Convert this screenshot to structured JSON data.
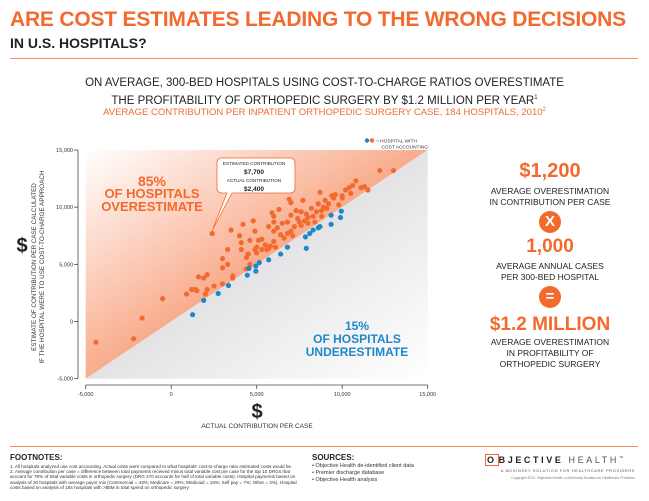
{
  "header": {
    "title": "ARE COST ESTIMATES LEADING TO THE WRONG DECISIONS",
    "subtitle": "IN U.S. HOSPITALS?",
    "headline_line1": "ON AVERAGE, 300-BED HOSPITALS USING COST-TO-CHARGE RATIOS OVERESTIMATE",
    "headline_line2": "THE PROFITABILITY OF ORTHOPEDIC SURGERY BY $1.2 MILLION PER YEAR",
    "headline_footnote": "1",
    "chart_subtitle": "AVERAGE CONTRIBUTION PER INPATIENT ORTHOPEDIC SURGERY CASE, 184 HOSPITALS, 2010",
    "chart_subtitle_footnote": "2"
  },
  "colors": {
    "accent": "#f26a2e",
    "blue": "#1f87c9",
    "gray_region": "#e3e3e5"
  },
  "chart_data": {
    "type": "scatter",
    "xlabel": "ACTUAL CONTRIBUTION PER CASE",
    "xlabel_symbol": "$",
    "ylabel_line1": "ESTIMATE OF CONTRIBUTION PER CASE CALCULATED",
    "ylabel_line2": "IF THE HOSPITAL WERE TO USE COST-TO-CHARGE APPROACH",
    "ylabel_symbol": "$",
    "xlim": [
      -5000,
      15000
    ],
    "ylim": [
      -5000,
      15000
    ],
    "xticks": [
      -5000,
      0,
      5000,
      10000,
      15000
    ],
    "xtick_labels": [
      "-5,000",
      "0",
      "5,000",
      "10,000",
      "15,000"
    ],
    "yticks": [
      -5000,
      0,
      5000,
      10000,
      15000
    ],
    "ytick_labels": [
      "-5,000",
      "0",
      "5,000",
      "10,000",
      "15,000"
    ],
    "diagonal": "y = x",
    "legend": {
      "text_line1": "= HOSPITAL WITH",
      "text_line2": "COST ACCOUNTING",
      "placement": "top-right"
    },
    "annotations": {
      "over_pct": "85%",
      "over_line1": "OF HOSPITALS",
      "over_line2": "OVERESTIMATE",
      "under_pct": "15%",
      "under_line1": "OF HOSPITALS",
      "under_line2": "UNDERESTIMATE",
      "callout": {
        "est_label": "ESTIMATED CONTRIBUTION",
        "est_value": "$7,700",
        "act_label": "ACTUAL CONTRIBUTION",
        "act_value": "$2,400",
        "point": [
          2400,
          7700
        ]
      }
    },
    "series": [
      {
        "color": "#f26a2e",
        "points": [
          [
            -4400,
            -1800
          ],
          [
            -2200,
            -1500
          ],
          [
            -1700,
            300
          ],
          [
            -500,
            2000
          ],
          [
            900,
            2400
          ],
          [
            1200,
            2800
          ],
          [
            1400,
            2800
          ],
          [
            1500,
            2700
          ],
          [
            1600,
            3900
          ],
          [
            1900,
            3800
          ],
          [
            2100,
            4100
          ],
          [
            2000,
            2400
          ],
          [
            2100,
            2800
          ],
          [
            2500,
            3100
          ],
          [
            2400,
            7700
          ],
          [
            3000,
            3300
          ],
          [
            3000,
            4700
          ],
          [
            3000,
            5500
          ],
          [
            3300,
            5000
          ],
          [
            3300,
            6300
          ],
          [
            3500,
            8000
          ],
          [
            3600,
            3800
          ],
          [
            3600,
            4000
          ],
          [
            4000,
            7500
          ],
          [
            4100,
            6900
          ],
          [
            4100,
            6300
          ],
          [
            4200,
            8500
          ],
          [
            4400,
            4600
          ],
          [
            4400,
            5600
          ],
          [
            4500,
            5900
          ],
          [
            4600,
            5000
          ],
          [
            4600,
            7100
          ],
          [
            4800,
            8800
          ],
          [
            4900,
            7900
          ],
          [
            4900,
            6300
          ],
          [
            5000,
            6500
          ],
          [
            5100,
            7100
          ],
          [
            5300,
            6300
          ],
          [
            5300,
            7200
          ],
          [
            5500,
            6700
          ],
          [
            5600,
            6300
          ],
          [
            5700,
            8300
          ],
          [
            5800,
            6600
          ],
          [
            5900,
            9500
          ],
          [
            6000,
            9200
          ],
          [
            6000,
            7900
          ],
          [
            6000,
            8700
          ],
          [
            6100,
            6500
          ],
          [
            6200,
            8200
          ],
          [
            6300,
            9800
          ],
          [
            6400,
            7600
          ],
          [
            6500,
            8600
          ],
          [
            6600,
            7300
          ],
          [
            6800,
            8700
          ],
          [
            6900,
            10700
          ],
          [
            7000,
            10400
          ],
          [
            7000,
            9300
          ],
          [
            7100,
            7500
          ],
          [
            7200,
            8300
          ],
          [
            7300,
            9700
          ],
          [
            7400,
            9000
          ],
          [
            7500,
            8700
          ],
          [
            7600,
            9600
          ],
          [
            7700,
            10600
          ],
          [
            7800,
            8800
          ],
          [
            7900,
            9400
          ],
          [
            8000,
            9100
          ],
          [
            8000,
            8600
          ],
          [
            8200,
            9900
          ],
          [
            8300,
            9200
          ],
          [
            8400,
            8700
          ],
          [
            8500,
            9600
          ],
          [
            8600,
            10300
          ],
          [
            8700,
            11300
          ],
          [
            8800,
            9200
          ],
          [
            8900,
            10000
          ],
          [
            9000,
            10600
          ],
          [
            9100,
            9900
          ],
          [
            9200,
            10300
          ],
          [
            9400,
            11000
          ],
          [
            9600,
            11100
          ],
          [
            9800,
            10200
          ],
          [
            10000,
            10800
          ],
          [
            10000,
            11000
          ],
          [
            10200,
            11500
          ],
          [
            10400,
            11700
          ],
          [
            10600,
            11900
          ],
          [
            10800,
            12300
          ],
          [
            11100,
            11700
          ],
          [
            11300,
            11800
          ],
          [
            11500,
            11500
          ],
          [
            12200,
            13200
          ],
          [
            13000,
            13200
          ],
          [
            10500,
            11200
          ],
          [
            9500,
            10800
          ],
          [
            8800,
            9700
          ],
          [
            7600,
            8400
          ],
          [
            6800,
            7700
          ],
          [
            6000,
            7000
          ],
          [
            5000,
            6000
          ],
          [
            5700,
            6400
          ],
          [
            7000,
            7900
          ]
        ]
      },
      {
        "color": "#1f87c9",
        "points": [
          [
            1250,
            600
          ],
          [
            1900,
            1850
          ],
          [
            2750,
            2450
          ],
          [
            3350,
            3150
          ],
          [
            4450,
            4050
          ],
          [
            4550,
            4650
          ],
          [
            4950,
            4400
          ],
          [
            4950,
            4850
          ],
          [
            5150,
            5150
          ],
          [
            5700,
            5400
          ],
          [
            6400,
            5900
          ],
          [
            6800,
            6500
          ],
          [
            7850,
            7400
          ],
          [
            7900,
            6400
          ],
          [
            8100,
            7700
          ],
          [
            8300,
            8000
          ],
          [
            8600,
            8200
          ],
          [
            8700,
            8300
          ],
          [
            9350,
            8500
          ],
          [
            9350,
            9300
          ],
          [
            9900,
            9100
          ],
          [
            9950,
            9650
          ]
        ]
      }
    ]
  },
  "summary": {
    "value1": "$1,200",
    "value1_line1": "AVERAGE OVERESTIMATION",
    "value1_line2": "IN CONTRIBUTION PER CASE",
    "times_symbol": "X",
    "value2": "1,000",
    "value2_line1": "AVERAGE ANNUAL CASES",
    "value2_line2": "PER  300-BED HOSPITAL",
    "equals_symbol": "=",
    "value3": "$1.2 MILLION",
    "value3_line1": "AVERAGE OVERESTIMATION",
    "value3_line2": "IN PROFITABILITY OF",
    "value3_line3": "ORTHOPEDIC SURGERY"
  },
  "footer": {
    "footnotes_title": "FOOTNOTES:",
    "footnotes": [
      "1. All hospitals analyzed use cost accounting. Actual costs were compared to what hospitals' cost-to-charge ratio estimated costs would be.",
      "2. Average contribution per case = difference between total payments received minus total variable cost per case for the top 10 DRGs that account for 78% of total variable costs in orthopedic surgery (DRG 470 accounts for half of total variable costs). Hospital payments based on analysis of 20 hospitals with average payor mix (Commercial = 43%; Medicare = 29%; Medicaid = 18%; Self pay = 7%; Other = 3%). Hospital costs based on analysis of 184 hospitals with >$5M in total spend on orthopedic surgery"
    ],
    "sources_title": "SOURCES:",
    "sources": [
      "• Objective Health de-identified client data",
      "• Premier discharge database",
      "• Objective Health analysis"
    ],
    "logo_text": "OBJECTIVE HEALTH",
    "logo_bold": "O",
    "logo_mid": "BJECTIVE",
    "logo_light": "HEALTH",
    "logo_tm": "™",
    "logo_tagline": "A MCKINSEY SOLUTION FOR HEALTHCARE PROVIDERS",
    "copyright": "Copyright 2012, Objective Health, a McKinsey Solution for Healthcare Providers"
  }
}
